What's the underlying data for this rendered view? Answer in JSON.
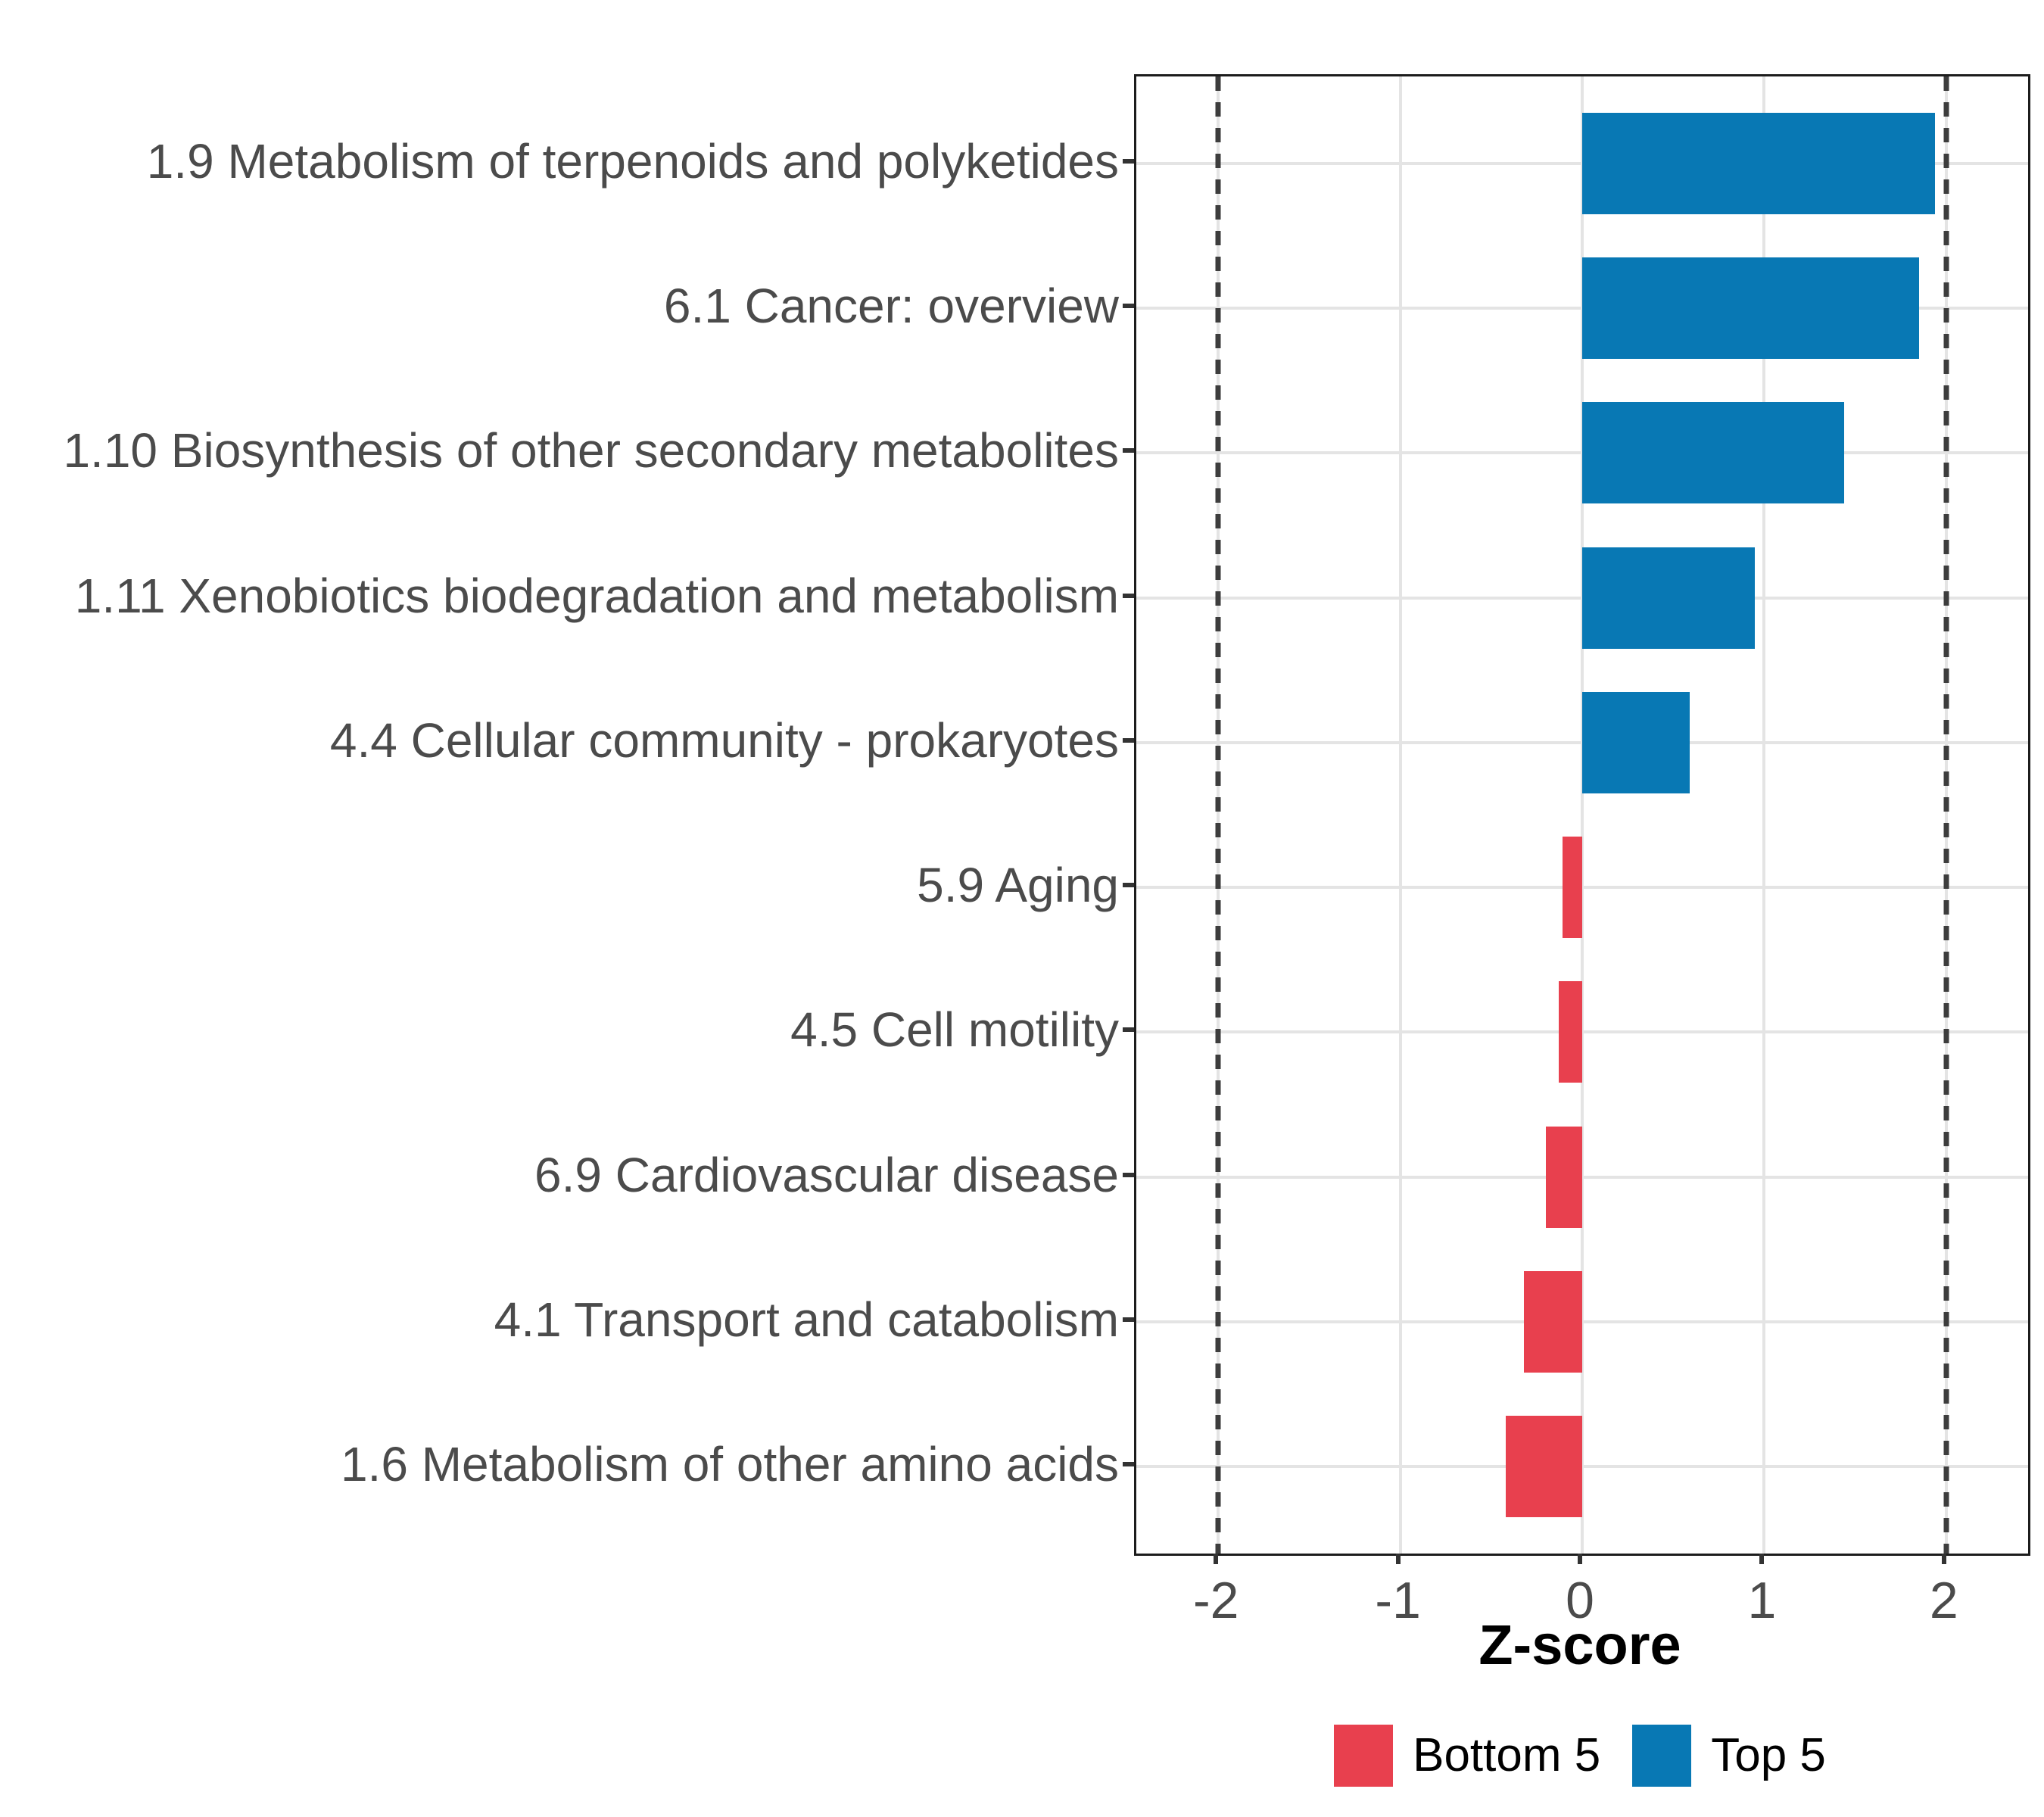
{
  "chart_data": {
    "type": "bar",
    "orientation": "horizontal",
    "title": "",
    "xlabel": "Z-score",
    "ylabel": "",
    "categories": [
      "1.9 Metabolism of terpenoids and polyketides",
      "6.1 Cancer: overview",
      "1.10 Biosynthesis of other secondary metabolites",
      "1.11 Xenobiotics biodegradation and metabolism",
      "4.4 Cellular community - prokaryotes",
      "5.9 Aging",
      "4.5 Cell motility",
      "6.9 Cardiovascular disease",
      "4.1 Transport and catabolism",
      "1.6 Metabolism of other amino acids"
    ],
    "values": [
      1.94,
      1.85,
      1.44,
      0.95,
      0.59,
      -0.11,
      -0.13,
      -0.2,
      -0.32,
      -0.42
    ],
    "groups": [
      "Top 5",
      "Top 5",
      "Top 5",
      "Top 5",
      "Top 5",
      "Bottom 5",
      "Bottom 5",
      "Bottom 5",
      "Bottom 5",
      "Bottom 5"
    ],
    "group_colors": {
      "Bottom 5": "#E8404E",
      "Top 5": "#0878B4"
    },
    "xlim": [
      -2.45,
      2.45
    ],
    "xticks": [
      -2,
      -1,
      0,
      1,
      2
    ],
    "xtick_labels": [
      "-2",
      "-1",
      "0",
      "1",
      "2"
    ],
    "reference_lines": {
      "values": [
        -2,
        2
      ],
      "style": "dashed",
      "color": "#3D3D3D"
    },
    "grid": {
      "major": true,
      "minor": false,
      "color": "#E4E4E4"
    },
    "bar_width": 0.7,
    "legend": {
      "position": "bottom",
      "entries": [
        {
          "label": "Bottom 5",
          "color": "#E8404E"
        },
        {
          "label": "Top 5",
          "color": "#0878B4"
        }
      ]
    }
  }
}
